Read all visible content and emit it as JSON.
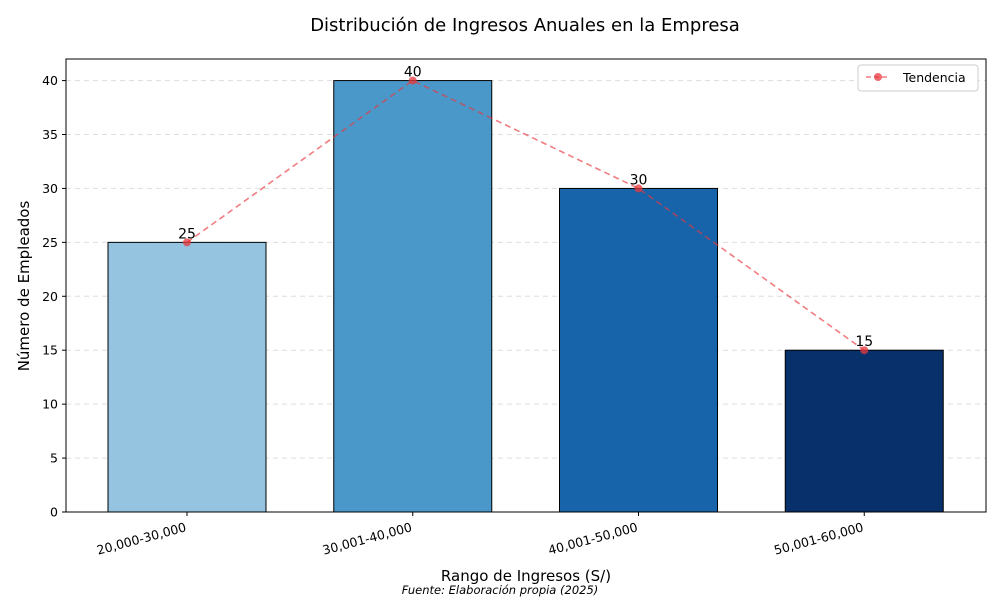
{
  "chart_data": {
    "type": "bar",
    "title": "Distribución de Ingresos Anuales en la Empresa",
    "xlabel": "Rango de Ingresos (S/)",
    "ylabel": "Número de Empleados",
    "categories": [
      "20,000-30,000",
      "30,001-40,000",
      "40,001-50,000",
      "50,001-60,000"
    ],
    "values": [
      25,
      40,
      30,
      15
    ],
    "bar_colors": [
      "#94c4df",
      "#4a98c9",
      "#1864aa",
      "#08306b"
    ],
    "ylim": [
      0,
      42
    ],
    "yticks": [
      0,
      5,
      10,
      15,
      20,
      25,
      30,
      35,
      40
    ],
    "grid": true,
    "trend": {
      "name": "Tendencia",
      "values": [
        25,
        40,
        30,
        15
      ],
      "color": "#e8383d",
      "style": "dashed"
    },
    "legend_position": "top-right",
    "source_note": "Fuente: Elaboración propia (2025)"
  }
}
